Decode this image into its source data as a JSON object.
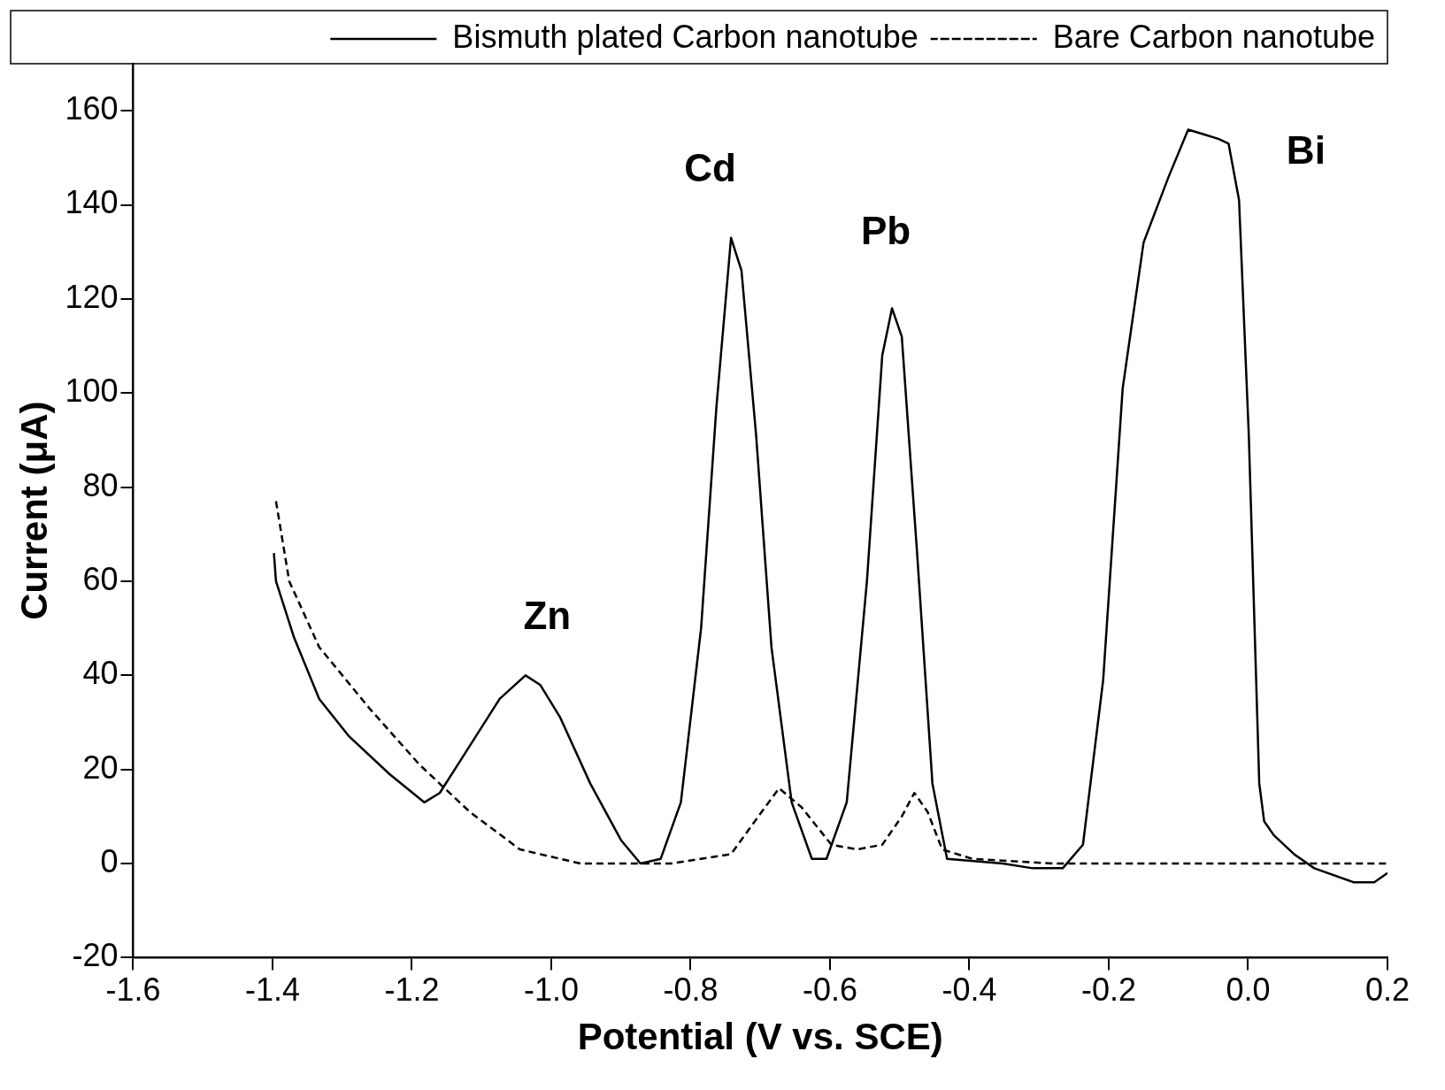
{
  "chart_data": {
    "type": "line",
    "xlabel": "Potential (V vs. SCE)",
    "ylabel": "Current (μA)",
    "xlim": [
      -1.6,
      0.2
    ],
    "xticks": [
      -1.6,
      -1.4,
      -1.2,
      {
        "value": -1,
        "label": "-1.0"
      },
      -0.8,
      -0.6,
      -0.4,
      -0.2,
      {
        "value": 0,
        "label": "0.0"
      },
      0.2
    ],
    "ylim": [
      -20,
      170
    ],
    "yticks": [
      -20,
      0,
      20,
      40,
      60,
      80,
      100,
      120,
      140,
      160
    ],
    "grid": false,
    "legend": "top right",
    "marker": "none",
    "series": [
      {
        "name": "Bismuth plated Carbon nanotube",
        "color": "#000000",
        "line_style": "solid",
        "x": [
          -1.398,
          -1.395,
          -1.369,
          -1.333,
          -1.29,
          -1.232,
          -1.182,
          -1.16,
          -1.117,
          -1.074,
          -1.037,
          -1.016,
          -0.987,
          -0.944,
          -0.9,
          -0.872,
          -0.843,
          -0.814,
          -0.785,
          -0.763,
          -0.742,
          -0.727,
          -0.706,
          -0.684,
          -0.655,
          -0.626,
          -0.605,
          -0.576,
          -0.547,
          -0.525,
          -0.511,
          -0.497,
          -0.475,
          -0.453,
          -0.432,
          -0.352,
          -0.309,
          -0.266,
          -0.237,
          -0.208,
          -0.18,
          -0.15,
          -0.114,
          -0.086,
          -0.064,
          -0.042,
          -0.028,
          -0.013,
          0.001,
          0.016,
          0.023,
          0.037,
          0.066,
          0.095,
          0.152,
          0.181,
          0.2
        ],
        "values": [
          66,
          60,
          48,
          35,
          27,
          19,
          13,
          15,
          25,
          35,
          40,
          38,
          31,
          17,
          5,
          0,
          1,
          13,
          50,
          97,
          133,
          126,
          91,
          46,
          13,
          1,
          1,
          13,
          60,
          108,
          118,
          112,
          66,
          17,
          1,
          0,
          -1,
          -1,
          4,
          39,
          101,
          132,
          146,
          156,
          155,
          154,
          153,
          141,
          91,
          17,
          9,
          6,
          2,
          -1,
          -4,
          -4,
          -2
        ]
      },
      {
        "name": "Bare Carbon nanotube",
        "color": "#000000",
        "line_style": "dashed",
        "x": [
          -1.395,
          -1.376,
          -1.333,
          -1.261,
          -1.189,
          -1.117,
          -1.045,
          -0.958,
          -0.828,
          -0.742,
          -0.698,
          -0.673,
          -0.641,
          -0.598,
          -0.561,
          -0.525,
          -0.497,
          -0.479,
          -0.46,
          -0.439,
          -0.396,
          -0.28,
          -0.136,
          0.008,
          0.2
        ],
        "values": [
          77,
          60,
          46,
          33,
          21,
          11,
          3,
          0,
          0,
          2,
          11,
          16,
          12,
          4,
          3,
          4,
          10,
          15,
          11,
          3,
          1,
          0,
          0,
          0,
          0
        ]
      }
    ],
    "annotations": [
      "Zn",
      "Cd",
      "Pb",
      "Bi"
    ]
  }
}
